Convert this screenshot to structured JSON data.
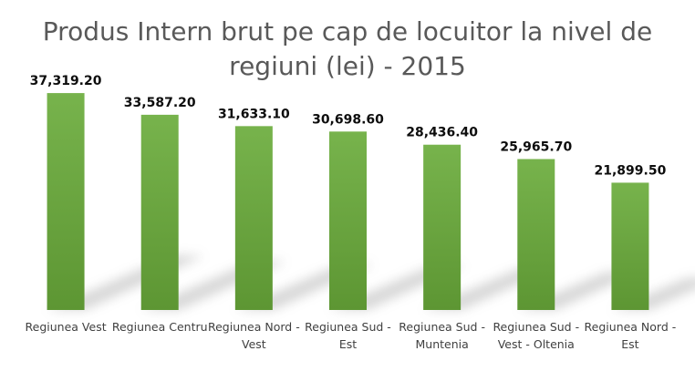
{
  "chart_data": {
    "type": "bar",
    "title": "Produs Intern brut pe cap de locuitor la nivel de regiuni (lei) - 2015",
    "title_lines": [
      "Produs Intern brut pe cap de locuitor la nivel de",
      "regiuni (lei) - 2015"
    ],
    "categories": [
      "Regiunea Vest",
      "Regiunea Centru",
      "Regiunea Nord - Vest",
      "Regiunea Sud - Est",
      "Regiunea Sud - Muntenia",
      "Regiunea Sud - Vest - Oltenia",
      "Regiunea Nord - Est"
    ],
    "category_lines": [
      [
        "Regiunea Vest"
      ],
      [
        "Regiunea Centru"
      ],
      [
        "Regiunea Nord -",
        "Vest"
      ],
      [
        "Regiunea Sud -",
        "Est"
      ],
      [
        "Regiunea Sud -",
        "Muntenia"
      ],
      [
        "Regiunea Sud -",
        "Vest - Oltenia"
      ],
      [
        "Regiunea Nord -",
        "Est"
      ]
    ],
    "values": [
      37319.2,
      33587.2,
      31633.1,
      30698.6,
      28436.4,
      25965.7,
      21899.5
    ],
    "data_labels": [
      "37,319.20",
      "33,587.20",
      "31,633.10",
      "30,698.60",
      "28,436.40",
      "25,965.70",
      "21,899.50"
    ],
    "ylim": [
      0,
      40000
    ],
    "xlabel": "",
    "ylabel": "",
    "grid": false,
    "bar_color_top": "#77b34c",
    "bar_color_bottom": "#5d9633"
  }
}
